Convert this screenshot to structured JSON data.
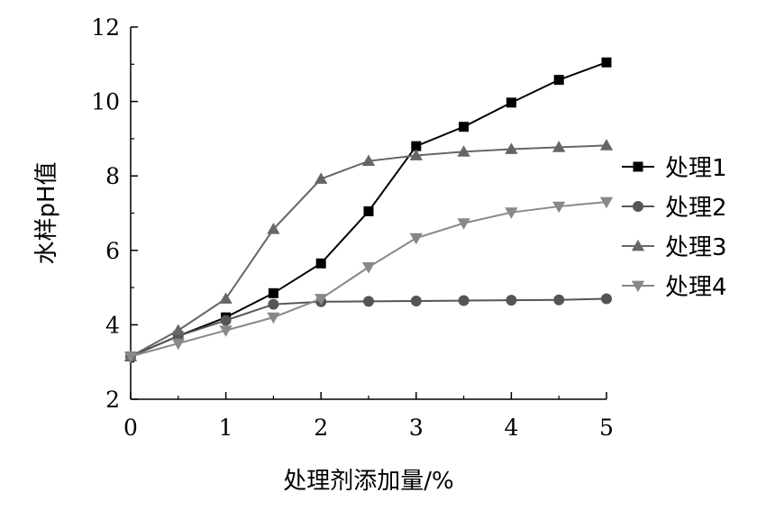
{
  "chart_data": {
    "type": "line",
    "title": "",
    "xlabel": "处理剂添加量/%",
    "ylabel": "水样pH值",
    "xlim": [
      0,
      5
    ],
    "ylim": [
      2,
      12
    ],
    "xticks": [
      0,
      1,
      2,
      3,
      4,
      5
    ],
    "yticks": [
      2,
      4,
      6,
      8,
      10,
      12
    ],
    "grid": false,
    "legend_position": "right",
    "x": [
      0,
      0.5,
      1,
      1.5,
      2,
      2.5,
      3,
      3.5,
      4,
      4.5,
      5
    ],
    "series": [
      {
        "name": "处理1",
        "marker": "square",
        "color": "#000000",
        "values": [
          3.15,
          3.7,
          4.2,
          4.85,
          5.65,
          7.05,
          8.8,
          9.32,
          9.97,
          10.58,
          11.05
        ]
      },
      {
        "name": "处理2",
        "marker": "circle",
        "color": "#555555",
        "values": [
          3.15,
          3.7,
          4.12,
          4.55,
          4.62,
          4.63,
          4.64,
          4.65,
          4.66,
          4.67,
          4.7
        ]
      },
      {
        "name": "处理3",
        "marker": "triangle-up",
        "color": "#666666",
        "values": [
          3.15,
          3.85,
          4.7,
          6.57,
          7.92,
          8.4,
          8.55,
          8.65,
          8.72,
          8.77,
          8.82
        ]
      },
      {
        "name": "处理4",
        "marker": "triangle-down",
        "color": "#888888",
        "values": [
          3.15,
          3.5,
          3.85,
          4.2,
          4.7,
          5.55,
          6.33,
          6.73,
          7.02,
          7.18,
          7.3
        ]
      }
    ]
  }
}
